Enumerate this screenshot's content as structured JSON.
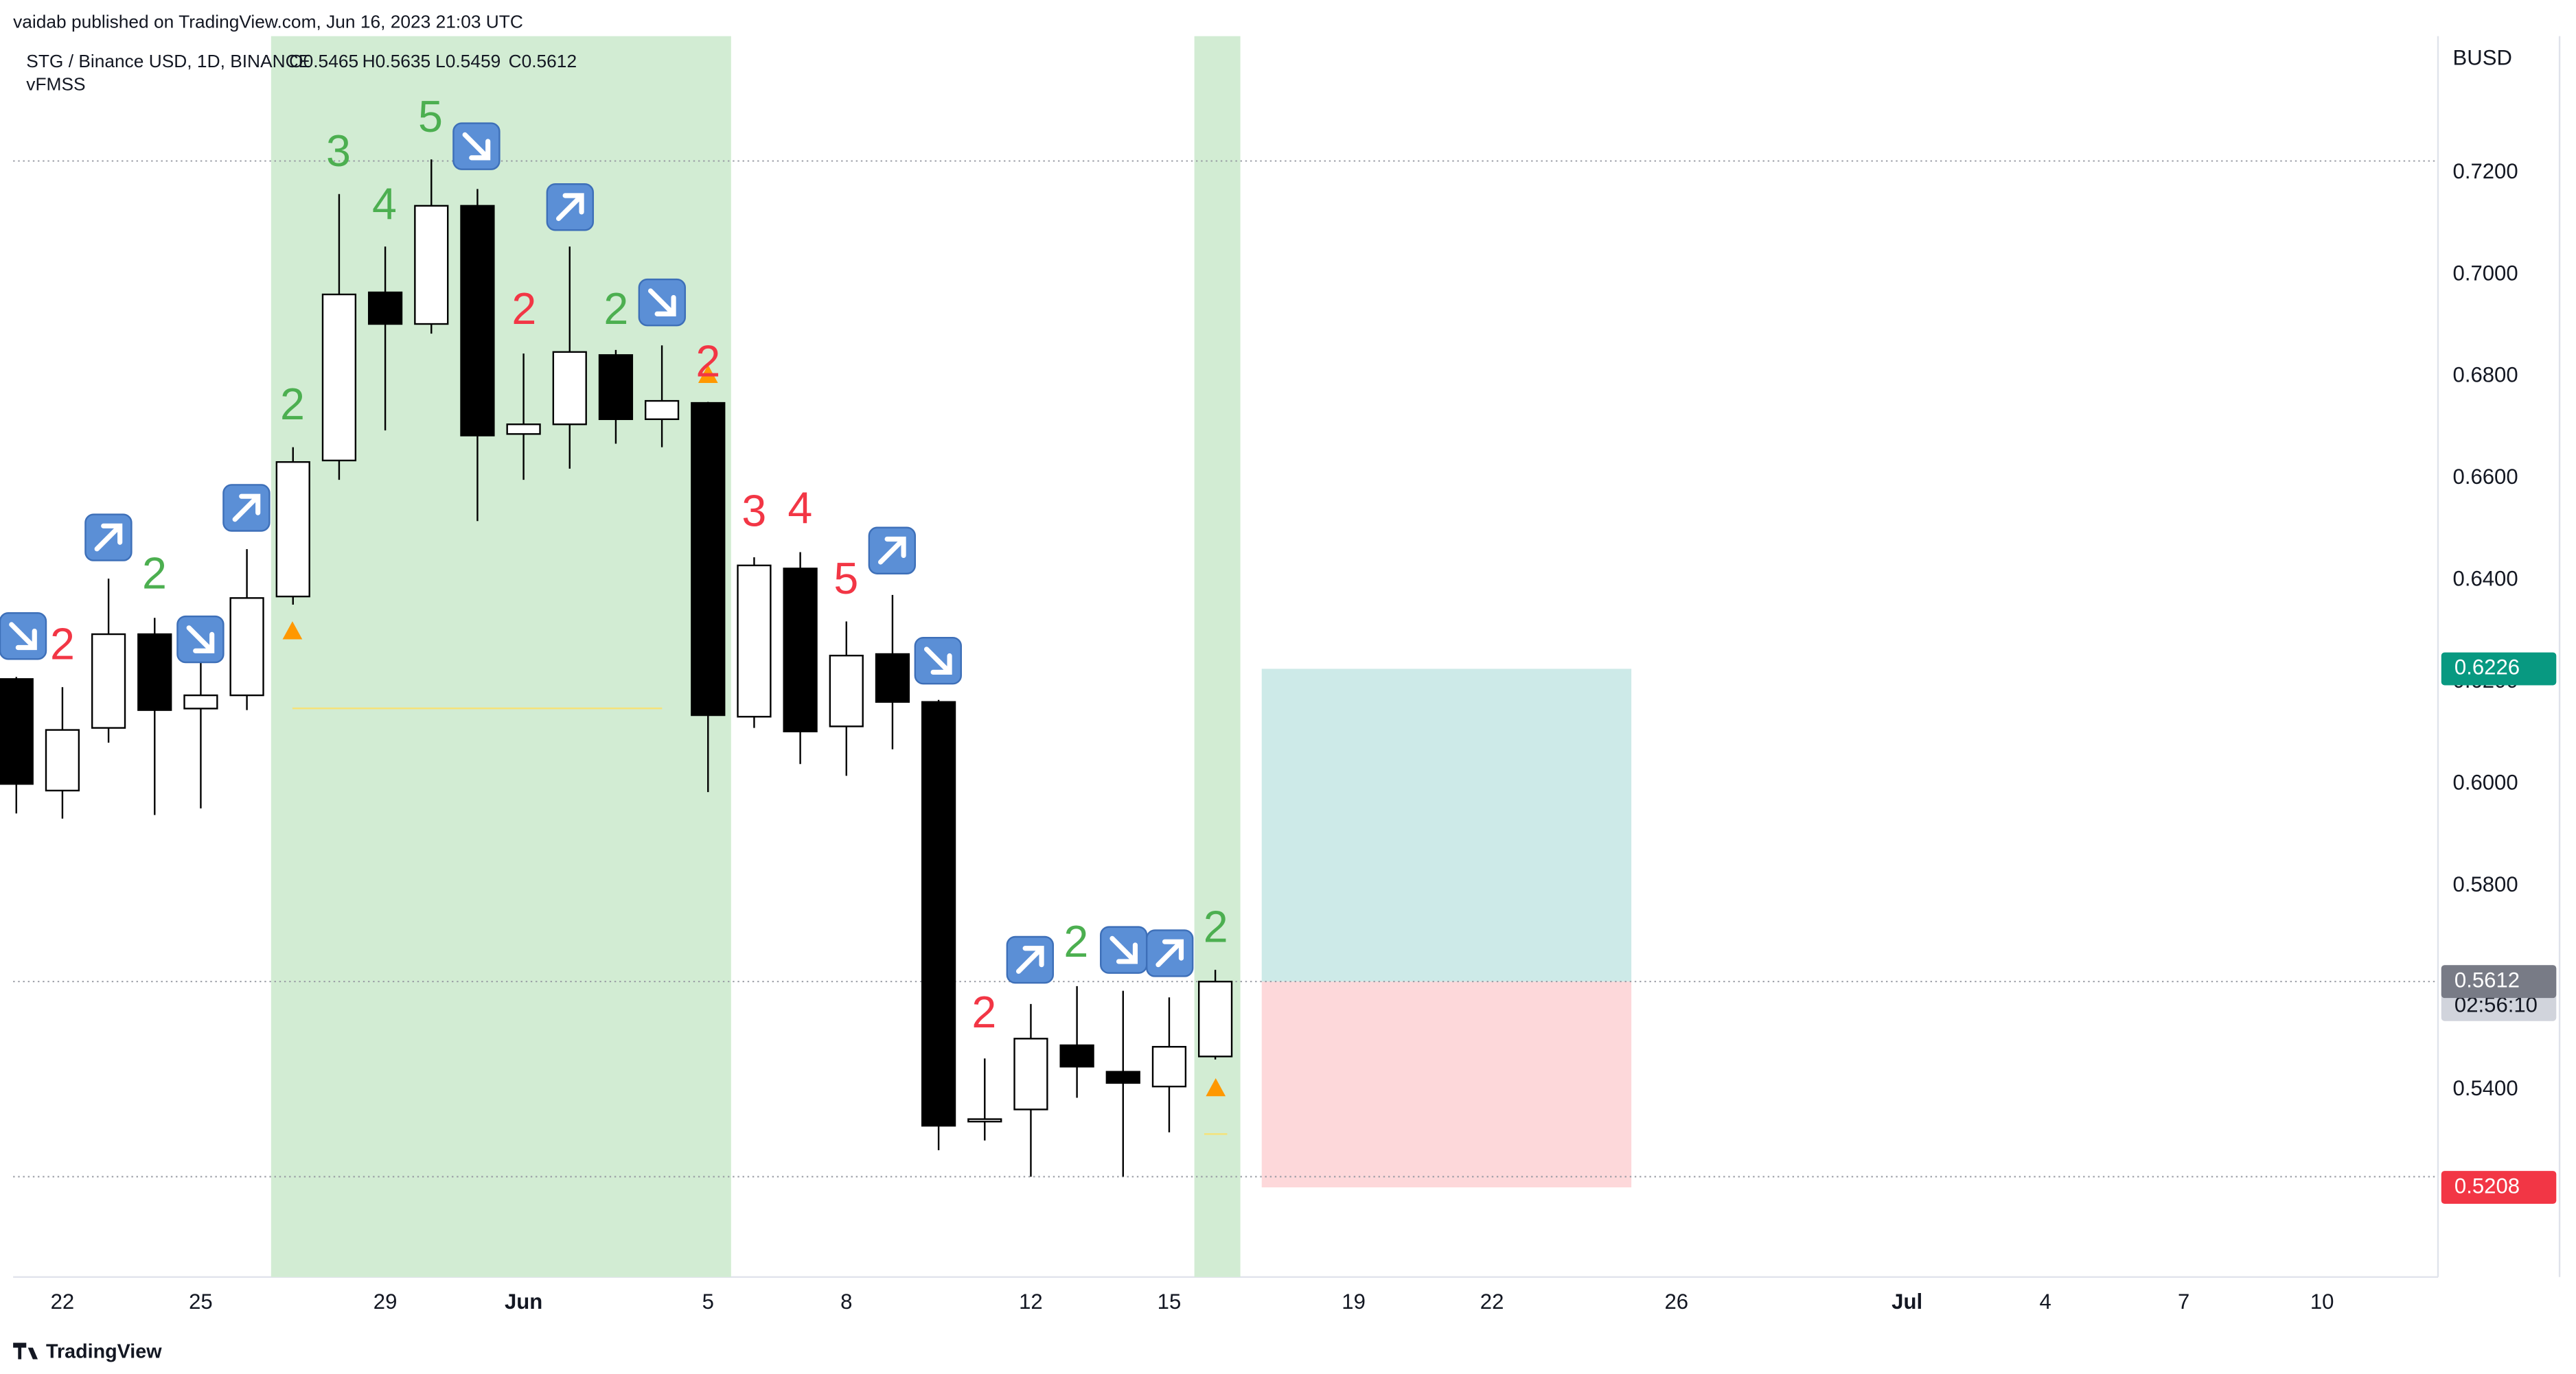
{
  "chart_data": {
    "type": "candlestick",
    "published": "vaidab published on TradingView.com, Jun 16, 2023 21:03 UTC",
    "symbol": "STG / Binance USD, 1D, BINANCE",
    "ohlc_labels": [
      "O0.5465",
      "H0.5635",
      "L0.5459",
      "C0.5612"
    ],
    "indicator": "vFMSS",
    "currency": "BUSD",
    "footer": "TradingView",
    "categories": [
      null,
      "22",
      null,
      null,
      "25",
      null,
      null,
      null,
      "29",
      null,
      null,
      "Jun",
      null,
      null,
      null,
      "5",
      null,
      null,
      "8",
      null,
      null,
      null,
      "12",
      null,
      null,
      "15",
      null,
      null,
      null,
      "19",
      null,
      null,
      "22",
      null,
      null,
      null,
      "26",
      null,
      null,
      null,
      null,
      "Jul",
      null,
      null,
      "4",
      null,
      null,
      "7",
      null,
      null,
      "10",
      null
    ],
    "open": [
      0.6206,
      0.5987,
      0.611,
      0.6294,
      0.6148,
      0.6174,
      0.6368,
      0.6635,
      0.6965,
      0.6903,
      0.7135,
      0.6687,
      0.6706,
      0.6842,
      0.6716,
      0.6748,
      0.6132,
      0.6423,
      0.6113,
      0.6255,
      0.6161,
      0.5339,
      0.5361,
      0.5487,
      0.5435,
      0.5406,
      0.5465,
      null,
      null,
      null,
      null,
      null,
      null,
      null,
      null,
      null,
      null,
      null,
      null,
      null,
      null,
      null,
      null,
      null,
      null,
      null,
      null,
      null,
      null,
      null,
      null,
      null
    ],
    "high": [
      0.621,
      0.619,
      0.6403,
      0.6326,
      0.6242,
      0.6461,
      0.6661,
      0.7158,
      0.7055,
      0.7226,
      0.7168,
      0.6845,
      0.7055,
      0.6852,
      0.6861,
      0.675,
      0.6445,
      0.6455,
      0.6319,
      0.6371,
      0.6165,
      0.5461,
      0.5568,
      0.5603,
      0.5594,
      0.5581,
      0.5635,
      null,
      null,
      null,
      null,
      null,
      null,
      null,
      null,
      null,
      null,
      null,
      null,
      null,
      null,
      null,
      null,
      null,
      null,
      null,
      null,
      null,
      null,
      null,
      null,
      null
    ],
    "low": [
      0.5942,
      0.5932,
      0.6081,
      0.5939,
      0.5952,
      0.6145,
      0.6352,
      0.6597,
      0.6694,
      0.6884,
      0.6516,
      0.6597,
      0.6619,
      0.6668,
      0.6661,
      0.5984,
      0.611,
      0.6039,
      0.6016,
      0.6068,
      0.5281,
      0.53,
      0.5229,
      0.5384,
      0.5229,
      0.5316,
      0.5459,
      null,
      null,
      null,
      null,
      null,
      null,
      null,
      null,
      null,
      null,
      null,
      null,
      null,
      null,
      null,
      null,
      null,
      null,
      null,
      null,
      null,
      null,
      null,
      null,
      null
    ],
    "close": [
      0.6,
      0.6106,
      0.6294,
      0.6145,
      0.6174,
      0.6365,
      0.6632,
      0.6961,
      0.6903,
      0.7135,
      0.6684,
      0.6706,
      0.6848,
      0.6716,
      0.6752,
      0.6135,
      0.6429,
      0.6103,
      0.6252,
      0.6161,
      0.5329,
      0.5342,
      0.55,
      0.5445,
      0.5413,
      0.5484,
      0.5612,
      null,
      null,
      null,
      null,
      null,
      null,
      null,
      null,
      null,
      null,
      null,
      null,
      null,
      null,
      null,
      null,
      null,
      null,
      null,
      null,
      null,
      null,
      null,
      null,
      null
    ],
    "ylim": [
      0.5032,
      0.7468
    ],
    "yticks": [
      {
        "value": 0.72,
        "label": "0.7200"
      },
      {
        "value": 0.7,
        "label": "0.7000"
      },
      {
        "value": 0.68,
        "label": "0.6800"
      },
      {
        "value": 0.66,
        "label": "0.6600"
      },
      {
        "value": 0.64,
        "label": "0.6400"
      },
      {
        "value": 0.62,
        "label": "0.6200"
      },
      {
        "value": 0.6,
        "label": "0.6000"
      },
      {
        "value": 0.58,
        "label": "0.5800"
      },
      {
        "value": 0.56,
        "label": "0.5600"
      },
      {
        "value": 0.54,
        "label": "0.5400"
      }
    ],
    "price_markers": [
      {
        "value": 0.6226,
        "color": "#089981"
      },
      {
        "value": 0.5612,
        "color": "#d1d4dc",
        "countdown": "02:56:10"
      },
      {
        "value": 0.5612,
        "color": "#787b86"
      },
      {
        "value": 0.5208,
        "color": "#f23645"
      }
    ],
    "hlines": [
      0.7223,
      0.5229
    ],
    "annotations": [
      {
        "text": "2",
        "color": "#f23645"
      },
      {
        "text": "2",
        "color": "#4caf50"
      },
      {
        "text": "2",
        "color": "#4caf50"
      },
      {
        "text": "3",
        "color": "#4caf50"
      },
      {
        "text": "4",
        "color": "#4caf50"
      },
      {
        "text": "5",
        "color": "#4caf50"
      },
      {
        "text": "2",
        "color": "#f23645"
      },
      {
        "text": "2",
        "color": "#4caf50"
      },
      {
        "text": "2",
        "color": "#f23645"
      },
      {
        "text": "3",
        "color": "#f23645"
      },
      {
        "text": "4",
        "color": "#f23645"
      },
      {
        "text": "5",
        "color": "#f23645"
      },
      {
        "text": "2",
        "color": "#f23645"
      },
      {
        "text": "2",
        "color": "#4caf50"
      },
      {
        "text": "2",
        "color": "#4caf50"
      }
    ]
  }
}
